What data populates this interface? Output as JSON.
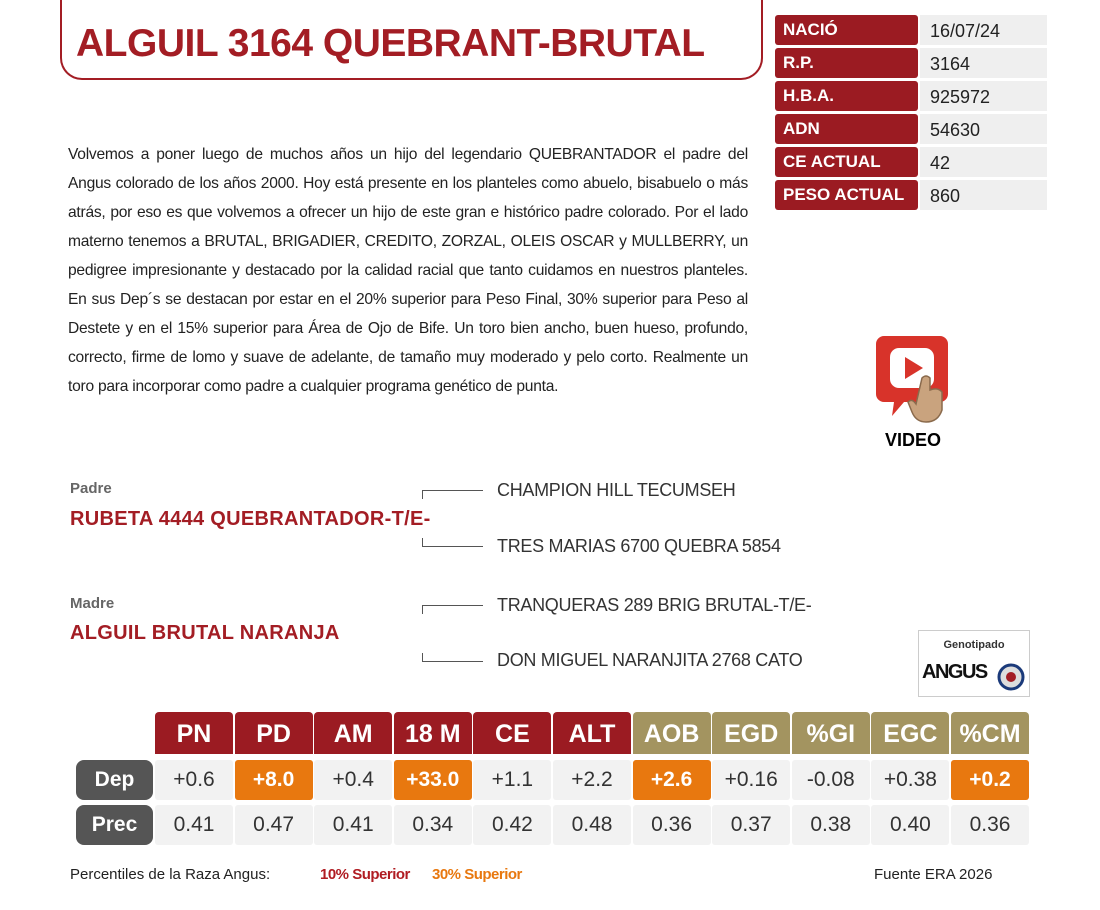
{
  "header": {
    "title": "ALGUIL 3164 QUEBRANT-BRUTAL"
  },
  "info": [
    [
      "NACIÓ",
      "16/07/24"
    ],
    [
      "R.P.",
      "3164"
    ],
    [
      "H.B.A.",
      "925972"
    ],
    [
      "ADN",
      "54630"
    ],
    [
      "CE ACTUAL",
      "42"
    ],
    [
      "PESO ACTUAL",
      "860"
    ]
  ],
  "description": "Volvemos a poner luego de muchos años un hijo del legendario QUEBRANTADOR el padre del Angus colorado de los años 2000. Hoy está presente en los planteles como abuelo, bisabuelo o más atrás, por eso es que volvemos a ofrecer un hijo de este gran e histórico padre colorado. Por el lado materno tenemos a BRUTAL, BRIGADIER, CREDITO, ZORZAL, OLEIS OSCAR y MULLBERRY, un pedigree impresionante y destacado por la calidad racial que tanto cuidamos en nuestros planteles. En sus Dep´s se destacan por estar en el 20% superior para Peso Final, 30% superior para Peso al Destete y en el 15% superior para Área de Ojo de Bife. Un toro bien ancho, buen hueso, profundo, correcto, firme de lomo y suave de adelante, de tamaño muy moderado y pelo corto. Realmente un toro para incorporar como padre a cualquier programa genético de punta.",
  "video": {
    "label": "VIDEO"
  },
  "pedigree": [
    {
      "role": "Padre",
      "name": "RUBETA 4444 QUEBRANTADOR-T/E-",
      "sire": "CHAMPION HILL TECUMSEH",
      "dam": "TRES MARIAS 6700 QUEBRA 5854"
    },
    {
      "role": "Madre",
      "name": "ALGUIL BRUTAL NARANJA",
      "sire": "TRANQUERAS 289 BRIG BRUTAL-T/E-",
      "dam": "DON MIGUEL NARANJITA 2768 CATO"
    }
  ],
  "badge": {
    "title": "Genotipado",
    "brand": "ANGUS"
  },
  "dep_table": {
    "headers": [
      {
        "label": "PN",
        "color": "#9b1b22"
      },
      {
        "label": "PD",
        "color": "#9b1b22"
      },
      {
        "label": "AM",
        "color": "#9b1b22"
      },
      {
        "label": "18 M",
        "color": "#9b1b22"
      },
      {
        "label": "CE",
        "color": "#9b1b22"
      },
      {
        "label": "ALT",
        "color": "#9b1b22"
      },
      {
        "label": "AOB",
        "color": "#a39460"
      },
      {
        "label": "EGD",
        "color": "#a39460"
      },
      {
        "label": "%GI",
        "color": "#a39460"
      },
      {
        "label": "EGC",
        "color": "#a39460"
      },
      {
        "label": "%CM",
        "color": "#a39460"
      }
    ],
    "rows": [
      {
        "label": "Dep",
        "values": [
          "+0.6",
          "+8.0",
          "+0.4",
          "+33.0",
          "+1.1",
          "+2.2",
          "+2.6",
          "+0.16",
          "-0.08",
          "+0.38",
          "+0.2"
        ],
        "highlight": [
          1,
          3,
          6,
          10
        ],
        "highlight_color": "#e8780f"
      },
      {
        "label": "Prec",
        "values": [
          "0.41",
          "0.47",
          "0.41",
          "0.34",
          "0.42",
          "0.48",
          "0.36",
          "0.37",
          "0.38",
          "0.40",
          "0.36"
        ]
      }
    ]
  },
  "footer": {
    "legend_label": "Percentiles de la Raza Angus:",
    "top10": "10% Superior",
    "top30": "30% Superior",
    "source": "Fuente ERA 2026"
  }
}
